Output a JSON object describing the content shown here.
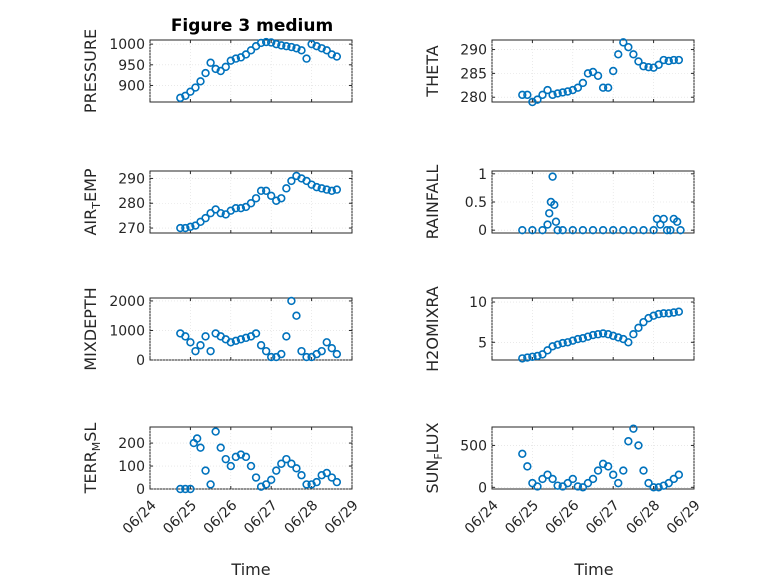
{
  "figure_title": "Figure 3 medium",
  "xlabel": "Time",
  "date_ticks": [
    "06/24",
    "06/25",
    "06/26",
    "06/27",
    "06/28",
    "06/29"
  ],
  "marker_color": "#0072BD",
  "chart_data": [
    {
      "type": "scatter",
      "ylabel": "PRESSURE",
      "ylim": [
        860,
        1010
      ],
      "yticks": [
        900,
        950,
        1000
      ],
      "grid": true,
      "x": [
        "06/24 18:00",
        "06/24 21:00",
        "06/25 00:00",
        "06/25 03:00",
        "06/25 06:00",
        "06/25 09:00",
        "06/25 12:00",
        "06/25 15:00",
        "06/25 18:00",
        "06/25 21:00",
        "06/26 00:00",
        "06/26 03:00",
        "06/26 06:00",
        "06/26 09:00",
        "06/26 12:00",
        "06/26 15:00",
        "06/26 18:00",
        "06/26 21:00",
        "06/27 00:00",
        "06/27 03:00",
        "06/27 06:00",
        "06/27 09:00",
        "06/27 12:00",
        "06/27 15:00",
        "06/27 18:00",
        "06/27 21:00",
        "06/28 00:00",
        "06/28 03:00",
        "06/28 06:00",
        "06/28 09:00",
        "06/28 12:00",
        "06/28 15:00"
      ],
      "y": [
        870,
        875,
        885,
        895,
        910,
        930,
        955,
        940,
        935,
        945,
        960,
        965,
        968,
        975,
        985,
        995,
        1003,
        1005,
        1004,
        1000,
        997,
        995,
        993,
        990,
        985,
        965,
        1000,
        995,
        990,
        985,
        975,
        970
      ]
    },
    {
      "type": "scatter",
      "ylabel": "THETA",
      "ylim": [
        279,
        292
      ],
      "yticks": [
        280,
        285,
        290
      ],
      "grid": true,
      "x": [
        "06/24 18:00",
        "06/24 21:00",
        "06/25 00:00",
        "06/25 03:00",
        "06/25 06:00",
        "06/25 09:00",
        "06/25 12:00",
        "06/25 15:00",
        "06/25 18:00",
        "06/25 21:00",
        "06/26 00:00",
        "06/26 03:00",
        "06/26 06:00",
        "06/26 09:00",
        "06/26 12:00",
        "06/26 15:00",
        "06/26 18:00",
        "06/26 21:00",
        "06/27 00:00",
        "06/27 03:00",
        "06/27 06:00",
        "06/27 09:00",
        "06/27 12:00",
        "06/27 15:00",
        "06/27 18:00",
        "06/27 21:00",
        "06/28 00:00",
        "06/28 03:00",
        "06/28 06:00",
        "06/28 09:00",
        "06/28 12:00",
        "06/28 15:00"
      ],
      "y": [
        280.5,
        280.5,
        279,
        279.5,
        280.5,
        281.5,
        280.5,
        280.8,
        281,
        281.2,
        281.5,
        282,
        283,
        285,
        285.3,
        284.5,
        282,
        282,
        285.5,
        289,
        291.5,
        290.5,
        289,
        287.5,
        286.5,
        286.3,
        286.2,
        286.8,
        287.8,
        287.6,
        287.8,
        287.8
      ]
    },
    {
      "type": "scatter",
      "ylabel": "AIR_TEMP",
      "ylim": [
        268,
        293
      ],
      "yticks": [
        270,
        280,
        290
      ],
      "grid": true,
      "x": [
        "06/24 18:00",
        "06/24 21:00",
        "06/25 00:00",
        "06/25 03:00",
        "06/25 06:00",
        "06/25 09:00",
        "06/25 12:00",
        "06/25 15:00",
        "06/25 18:00",
        "06/25 21:00",
        "06/26 00:00",
        "06/26 03:00",
        "06/26 06:00",
        "06/26 09:00",
        "06/26 12:00",
        "06/26 15:00",
        "06/26 18:00",
        "06/26 21:00",
        "06/27 00:00",
        "06/27 03:00",
        "06/27 06:00",
        "06/27 09:00",
        "06/27 12:00",
        "06/27 15:00",
        "06/27 18:00",
        "06/27 21:00",
        "06/28 00:00",
        "06/28 03:00",
        "06/28 06:00",
        "06/28 09:00",
        "06/28 12:00",
        "06/28 15:00"
      ],
      "y": [
        270,
        270,
        270.5,
        271,
        272.5,
        274,
        276,
        277.5,
        276,
        275.5,
        277,
        278,
        278,
        278.5,
        280,
        282,
        285,
        285,
        283,
        281,
        282,
        286,
        289,
        291,
        290,
        289,
        287.5,
        286.5,
        286,
        285.5,
        285,
        285.5
      ]
    },
    {
      "type": "scatter",
      "ylabel": "RAINFALL",
      "ylim": [
        -0.05,
        1.05
      ],
      "yticks": [
        0,
        0.5,
        1
      ],
      "ytick_labels": [
        "0",
        "0.5",
        "1"
      ],
      "grid": true,
      "x": [
        "06/24 18:00",
        "06/25 00:00",
        "06/25 06:00",
        "06/25 09:00",
        "06/25 10:00",
        "06/25 11:00",
        "06/25 12:00",
        "06/25 13:00",
        "06/25 14:00",
        "06/25 15:00",
        "06/25 18:00",
        "06/26 00:00",
        "06/26 06:00",
        "06/26 12:00",
        "06/26 18:00",
        "06/27 00:00",
        "06/27 06:00",
        "06/27 12:00",
        "06/27 18:00",
        "06/28 00:00",
        "06/28 02:00",
        "06/28 04:00",
        "06/28 06:00",
        "06/28 08:00",
        "06/28 10:00",
        "06/28 12:00",
        "06/28 14:00",
        "06/28 16:00"
      ],
      "y": [
        0,
        0,
        0,
        0.1,
        0.3,
        0.5,
        0.95,
        0.45,
        0.15,
        0,
        0,
        0,
        0,
        0,
        0,
        0,
        0,
        0,
        0,
        0,
        0.2,
        0.1,
        0.2,
        0,
        0,
        0.2,
        0.15,
        0
      ]
    },
    {
      "type": "scatter",
      "ylabel": "MIXDEPTH",
      "ylim": [
        0,
        2100
      ],
      "yticks": [
        0,
        1000,
        2000
      ],
      "grid": true,
      "x": [
        "06/24 18:00",
        "06/24 21:00",
        "06/25 00:00",
        "06/25 03:00",
        "06/25 06:00",
        "06/25 09:00",
        "06/25 12:00",
        "06/25 15:00",
        "06/25 18:00",
        "06/25 21:00",
        "06/26 00:00",
        "06/26 03:00",
        "06/26 06:00",
        "06/26 09:00",
        "06/26 12:00",
        "06/26 15:00",
        "06/26 18:00",
        "06/26 21:00",
        "06/27 00:00",
        "06/27 03:00",
        "06/27 06:00",
        "06/27 09:00",
        "06/27 12:00",
        "06/27 15:00",
        "06/27 18:00",
        "06/27 21:00",
        "06/28 00:00",
        "06/28 03:00",
        "06/28 06:00",
        "06/28 09:00",
        "06/28 12:00",
        "06/28 15:00"
      ],
      "y": [
        900,
        800,
        600,
        300,
        500,
        800,
        300,
        900,
        800,
        700,
        600,
        650,
        700,
        750,
        800,
        900,
        500,
        300,
        100,
        100,
        200,
        800,
        2000,
        1500,
        300,
        100,
        100,
        200,
        300,
        600,
        400,
        200
      ]
    },
    {
      "type": "scatter",
      "ylabel": "H2OMIXRA",
      "ylim": [
        2.8,
        10.5
      ],
      "yticks": [
        5,
        10
      ],
      "grid": true,
      "x": [
        "06/24 18:00",
        "06/24 21:00",
        "06/25 00:00",
        "06/25 03:00",
        "06/25 06:00",
        "06/25 09:00",
        "06/25 12:00",
        "06/25 15:00",
        "06/25 18:00",
        "06/25 21:00",
        "06/26 00:00",
        "06/26 03:00",
        "06/26 06:00",
        "06/26 09:00",
        "06/26 12:00",
        "06/26 15:00",
        "06/26 18:00",
        "06/26 21:00",
        "06/27 00:00",
        "06/27 03:00",
        "06/27 06:00",
        "06/27 09:00",
        "06/27 12:00",
        "06/27 15:00",
        "06/27 18:00",
        "06/27 21:00",
        "06/28 00:00",
        "06/28 03:00",
        "06/28 06:00",
        "06/28 09:00",
        "06/28 12:00",
        "06/28 15:00"
      ],
      "y": [
        3,
        3.1,
        3.2,
        3.3,
        3.5,
        4,
        4.5,
        4.7,
        4.9,
        5,
        5.2,
        5.4,
        5.5,
        5.7,
        5.9,
        6,
        6.1,
        6,
        5.8,
        5.6,
        5.4,
        5,
        6,
        6.8,
        7.5,
        8,
        8.3,
        8.5,
        8.6,
        8.6,
        8.7,
        8.8
      ]
    },
    {
      "type": "scatter",
      "ylabel": "TERR_MSL",
      "ylim": [
        0,
        270
      ],
      "yticks": [
        0,
        100,
        200
      ],
      "grid": true,
      "x": [
        "06/24 18:00",
        "06/24 21:00",
        "06/25 00:00",
        "06/25 02:00",
        "06/25 04:00",
        "06/25 06:00",
        "06/25 09:00",
        "06/25 12:00",
        "06/25 15:00",
        "06/25 18:00",
        "06/25 21:00",
        "06/26 00:00",
        "06/26 03:00",
        "06/26 06:00",
        "06/26 09:00",
        "06/26 12:00",
        "06/26 15:00",
        "06/26 18:00",
        "06/26 21:00",
        "06/27 00:00",
        "06/27 03:00",
        "06/27 06:00",
        "06/27 09:00",
        "06/27 12:00",
        "06/27 15:00",
        "06/27 18:00",
        "06/27 21:00",
        "06/28 00:00",
        "06/28 03:00",
        "06/28 06:00",
        "06/28 09:00",
        "06/28 12:00",
        "06/28 15:00"
      ],
      "y": [
        0,
        0,
        0,
        200,
        220,
        180,
        80,
        20,
        250,
        180,
        130,
        100,
        140,
        150,
        140,
        100,
        50,
        10,
        20,
        40,
        80,
        110,
        130,
        110,
        90,
        60,
        20,
        20,
        30,
        60,
        70,
        50,
        30
      ]
    },
    {
      "type": "scatter",
      "ylabel": "SUN_FLUX",
      "ylim": [
        -20,
        720
      ],
      "yticks": [
        0,
        500
      ],
      "grid": true,
      "x": [
        "06/24 18:00",
        "06/24 21:00",
        "06/25 00:00",
        "06/25 03:00",
        "06/25 06:00",
        "06/25 09:00",
        "06/25 12:00",
        "06/25 15:00",
        "06/25 18:00",
        "06/25 21:00",
        "06/26 00:00",
        "06/26 03:00",
        "06/26 06:00",
        "06/26 09:00",
        "06/26 12:00",
        "06/26 15:00",
        "06/26 18:00",
        "06/26 21:00",
        "06/27 00:00",
        "06/27 03:00",
        "06/27 06:00",
        "06/27 09:00",
        "06/27 12:00",
        "06/27 15:00",
        "06/27 18:00",
        "06/27 21:00",
        "06/28 00:00",
        "06/28 03:00",
        "06/28 06:00",
        "06/28 09:00",
        "06/28 12:00",
        "06/28 15:00"
      ],
      "y": [
        400,
        250,
        50,
        10,
        100,
        150,
        100,
        20,
        10,
        50,
        100,
        10,
        0,
        50,
        100,
        200,
        280,
        250,
        150,
        50,
        200,
        550,
        700,
        500,
        200,
        50,
        0,
        0,
        20,
        50,
        100,
        150
      ]
    }
  ]
}
